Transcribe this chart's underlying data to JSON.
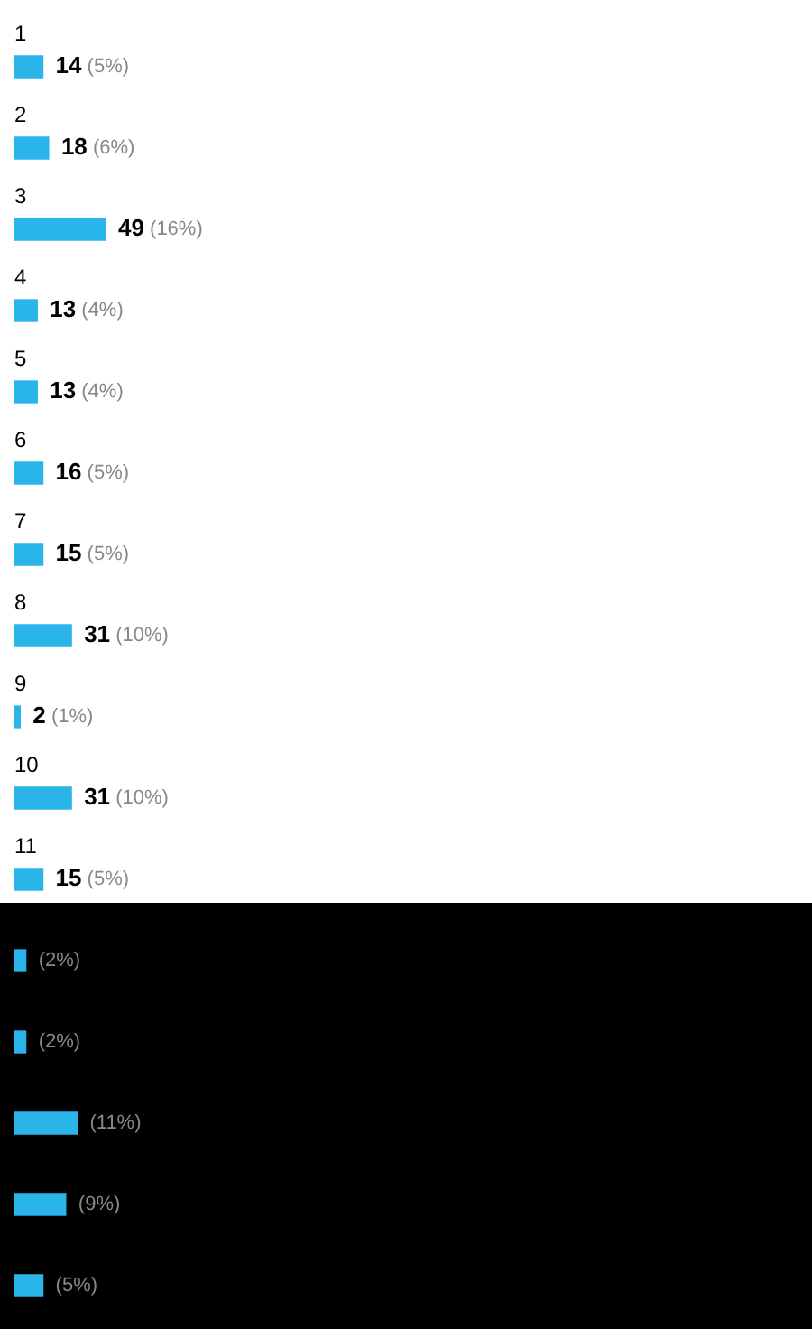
{
  "chart_data": {
    "type": "bar",
    "orientation": "horizontal",
    "categories": [
      "1",
      "2",
      "3",
      "4",
      "5",
      "6",
      "7",
      "8",
      "9",
      "10",
      "11",
      null,
      null,
      null,
      null,
      null
    ],
    "values": [
      5,
      6,
      16,
      4,
      4,
      5,
      5,
      10,
      1,
      10,
      5,
      2,
      2,
      11,
      9,
      5
    ],
    "value_labels": [
      "14 (5%)",
      "18 (6%)",
      "49 (16%)",
      "13 (4%)",
      "13 (4%)",
      "16 (5%)",
      "15 (5%)",
      "31 (10%)",
      "2 (1%)",
      "31 (10%)",
      "15 (5%)",
      "(2%)",
      "(2%)",
      "(11%)",
      "(9%)",
      "(5%)"
    ],
    "color": "#29b4ea",
    "tick_labels": false,
    "legend": false
  }
}
